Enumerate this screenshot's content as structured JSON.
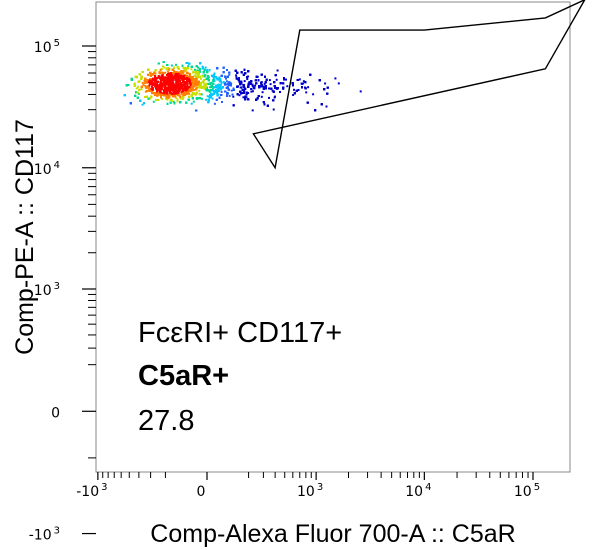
{
  "chart_data": {
    "type": "scatter",
    "style": "density",
    "xlabel": "Comp-Alexa Fluor 700-A :: C5aR",
    "ylabel": "Comp-PE-A :: CD117",
    "x_scale": "biexponential",
    "y_scale": "biexponential",
    "x_ticks": [
      {
        "value": -1000,
        "base": "-10",
        "exp": "3"
      },
      {
        "value": 0,
        "base": "0",
        "exp": ""
      },
      {
        "value": 1000,
        "base": "10",
        "exp": "3"
      },
      {
        "value": 10000,
        "base": "10",
        "exp": "4"
      },
      {
        "value": 100000,
        "base": "10",
        "exp": "5"
      }
    ],
    "y_ticks": [
      {
        "value": -1000,
        "base": "-10",
        "exp": "3"
      },
      {
        "value": 0,
        "base": "0",
        "exp": ""
      },
      {
        "value": 1000,
        "base": "10",
        "exp": "3"
      },
      {
        "value": 10000,
        "base": "10",
        "exp": "4"
      },
      {
        "value": 100000,
        "base": "10",
        "exp": "5"
      }
    ],
    "gate": {
      "parent": "FcεRI+ CD117+",
      "name": "C5aR+",
      "percent": "27.8",
      "vertices": [
        [
          400,
          10000
        ],
        [
          230,
          19000
        ],
        [
          130000,
          65000
        ],
        [
          300000,
          240000
        ],
        [
          130000,
          170000
        ],
        [
          10000,
          135000
        ],
        [
          700,
          135000
        ]
      ]
    },
    "population": {
      "center": [
        -180,
        50000
      ],
      "approx_x_range": [
        -1500,
        30000
      ],
      "approx_y_range": [
        12000,
        200000
      ],
      "density_colors": [
        "#0000c8",
        "#2060ff",
        "#00c8ff",
        "#00d890",
        "#c8e000",
        "#ff8000",
        "#ff0000"
      ]
    },
    "grid": false,
    "legend": "none"
  },
  "labels": {
    "gate_parent": "FcεRI+ CD117+",
    "gate_name": "C5aR+",
    "gate_percent": "27.8"
  }
}
